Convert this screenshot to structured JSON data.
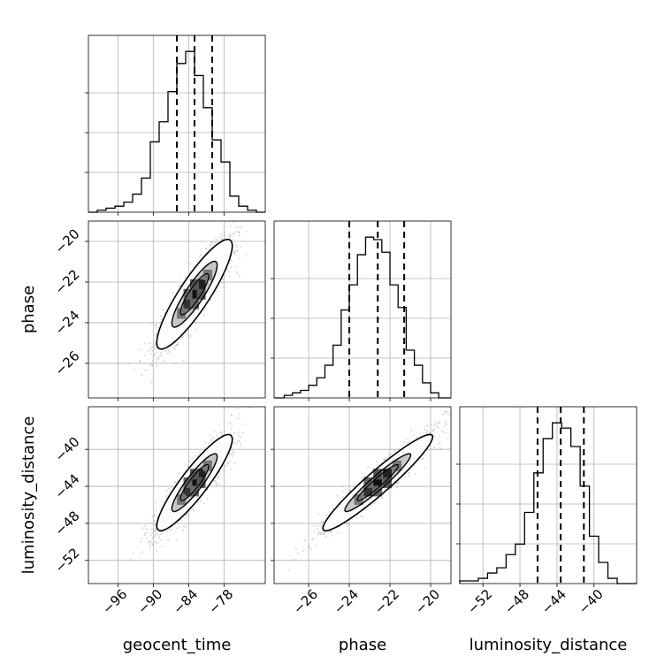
{
  "chart_data": {
    "type": "corner",
    "parameters": [
      "geocent_time",
      "phase",
      "luminosity_distance"
    ],
    "axis_labels": {
      "x": [
        "geocent_time",
        "phase",
        "luminosity_distance"
      ],
      "y": [
        "",
        "phase",
        "luminosity_distance"
      ]
    },
    "ranges": {
      "geocent_time": [
        -101,
        -71
      ],
      "phase": [
        -27.7,
        -19.0
      ],
      "luminosity_distance": [
        -54.5,
        -35.4
      ]
    },
    "ticks": {
      "geocent_time": [
        -96,
        -90,
        -84,
        -78
      ],
      "phase": [
        -26,
        -24,
        -22,
        -20
      ],
      "luminosity_distance": [
        -52,
        -48,
        -44,
        -40
      ]
    },
    "tick_labels": {
      "geocent_time": [
        "−96",
        "−90",
        "−84",
        "−78"
      ],
      "phase": [
        "−26",
        "−24",
        "−22",
        "−20"
      ],
      "luminosity_distance": [
        "−52",
        "−48",
        "−44",
        "−40"
      ]
    },
    "quantiles": {
      "geocent_time": [
        -86.0,
        -83.0,
        -80.0
      ],
      "phase": [
        -24.0,
        -22.6,
        -21.3
      ],
      "luminosity_distance": [
        -46.1,
        -43.6,
        -41.1
      ]
    },
    "histograms": {
      "geocent_time": {
        "edges": [
          -101,
          -99.5,
          -98,
          -96.5,
          -95,
          -93.5,
          -92,
          -90.5,
          -89,
          -87.5,
          -86,
          -84.5,
          -83,
          -81.5,
          -80,
          -78.5,
          -77,
          -75.5,
          -74,
          -72.5,
          -71
        ],
        "counts": [
          0,
          1,
          2,
          3,
          5,
          9,
          17,
          35,
          45,
          60,
          74,
          80,
          68,
          52,
          36,
          25,
          8,
          3,
          1,
          0
        ]
      },
      "phase": {
        "edges": [
          -27.7,
          -27.2,
          -26.8,
          -26.4,
          -26.0,
          -25.6,
          -25.2,
          -24.8,
          -24.4,
          -24.0,
          -23.6,
          -23.2,
          -22.8,
          -22.4,
          -22.0,
          -21.6,
          -21.2,
          -20.8,
          -20.4,
          -20.0,
          -19.6,
          -19.0
        ],
        "counts": [
          0,
          1,
          2,
          3,
          5,
          8,
          13,
          21,
          35,
          45,
          57,
          64,
          63,
          58,
          45,
          36,
          19,
          13,
          6,
          2,
          0
        ]
      },
      "luminosity_distance": {
        "edges": [
          -54.5,
          -52.5,
          -51.5,
          -50.5,
          -49.5,
          -48.5,
          -47.5,
          -46.5,
          -45.5,
          -44.5,
          -43.5,
          -42.5,
          -41.5,
          -40.5,
          -39.5,
          -38.5,
          -37.5,
          -35.4
        ],
        "counts": [
          1,
          2,
          4,
          6,
          11,
          15,
          27,
          42,
          55,
          61,
          59,
          52,
          37,
          18,
          8,
          2,
          0
        ]
      }
    },
    "mean": {
      "geocent_time": -83.0,
      "phase": -22.6,
      "luminosity_distance": -43.6
    },
    "correlations": {
      "geocent_time|phase": 0.88,
      "geocent_time|luminosity_distance": 0.9,
      "phase|luminosity_distance": 0.95
    },
    "sigma": {
      "geocent_time": 3.2,
      "phase": 1.35,
      "luminosity_distance": 2.6
    },
    "grid": true,
    "colors": {
      "line": "#000000",
      "grid": "#b0b0b0",
      "points": "#999999",
      "quantile": "#000000"
    }
  }
}
